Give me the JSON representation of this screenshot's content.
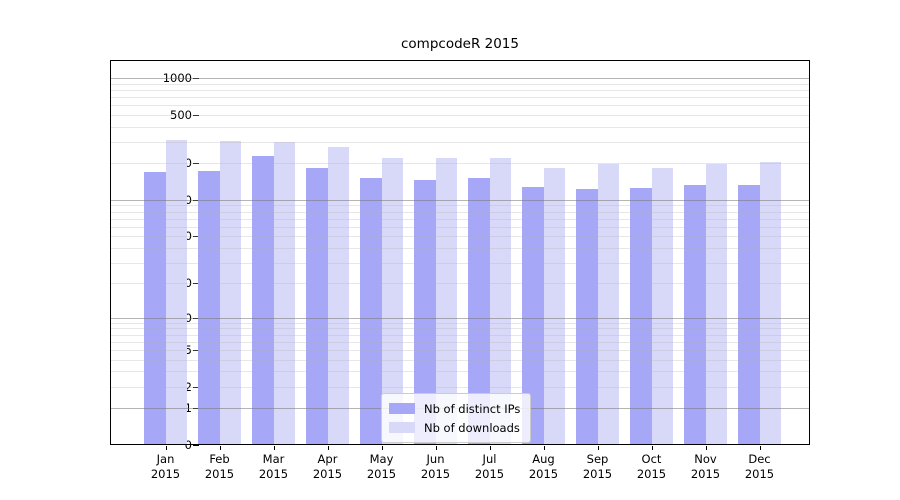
{
  "chart_data": {
    "type": "bar",
    "title": "compcodeR 2015",
    "x_tick_labels_line1": [
      "Jan",
      "Feb",
      "Mar",
      "Apr",
      "May",
      "Jun",
      "Jul",
      "Aug",
      "Sep",
      "Oct",
      "Nov",
      "Dec"
    ],
    "x_tick_labels_line2": [
      "2015",
      "2015",
      "2015",
      "2015",
      "2015",
      "2015",
      "2015",
      "2015",
      "2015",
      "2015",
      "2015",
      "2015"
    ],
    "categories": [
      "Jan 2015",
      "Feb 2015",
      "Mar 2015",
      "Apr 2015",
      "May 2015",
      "Jun 2015",
      "Jul 2015",
      "Aug 2015",
      "Sep 2015",
      "Oct 2015",
      "Nov 2015",
      "Dec 2015"
    ],
    "series": [
      {
        "name": "Nb of distinct IPs",
        "values": [
          171,
          172,
          230,
          182,
          151,
          147,
          153,
          129,
          123,
          125,
          132,
          132
        ]
      },
      {
        "name": "Nb of downloads",
        "values": [
          313,
          305,
          298,
          272,
          220,
          223,
          220,
          184,
          197,
          184,
          199,
          205
        ]
      }
    ],
    "yscale": "log1p",
    "ylim": [
      0,
      1400
    ],
    "y_tick_values": [
      1000,
      500,
      200,
      100,
      50,
      20,
      10,
      5,
      2,
      1,
      0
    ],
    "y_tick_labels": [
      "1000",
      "500",
      "200",
      "100",
      "50",
      "20",
      "10",
      "5",
      "2",
      "1",
      "0"
    ],
    "grid_major_values": [
      1,
      10,
      100,
      1000
    ],
    "grid_minor_values": [
      2,
      3,
      4,
      5,
      6,
      7,
      8,
      9,
      20,
      30,
      40,
      50,
      60,
      70,
      80,
      90,
      200,
      300,
      400,
      500,
      600,
      700,
      800,
      900
    ],
    "legend_position": "lower-center",
    "grid": "on"
  },
  "legend": {
    "items": [
      {
        "label": "Nb of distinct IPs",
        "color": "#a7a7f7"
      },
      {
        "label": "Nb of downloads",
        "color": "#d8d8f8"
      }
    ]
  },
  "colors": {
    "bar_distinct_ips": "#a7a7f7",
    "bar_downloads": "#d8d8f8",
    "grid_major": "rgba(120,120,120,0.55)",
    "grid_minor": "rgba(175,175,175,0.30)",
    "spine": "#000000",
    "background": "#ffffff"
  }
}
